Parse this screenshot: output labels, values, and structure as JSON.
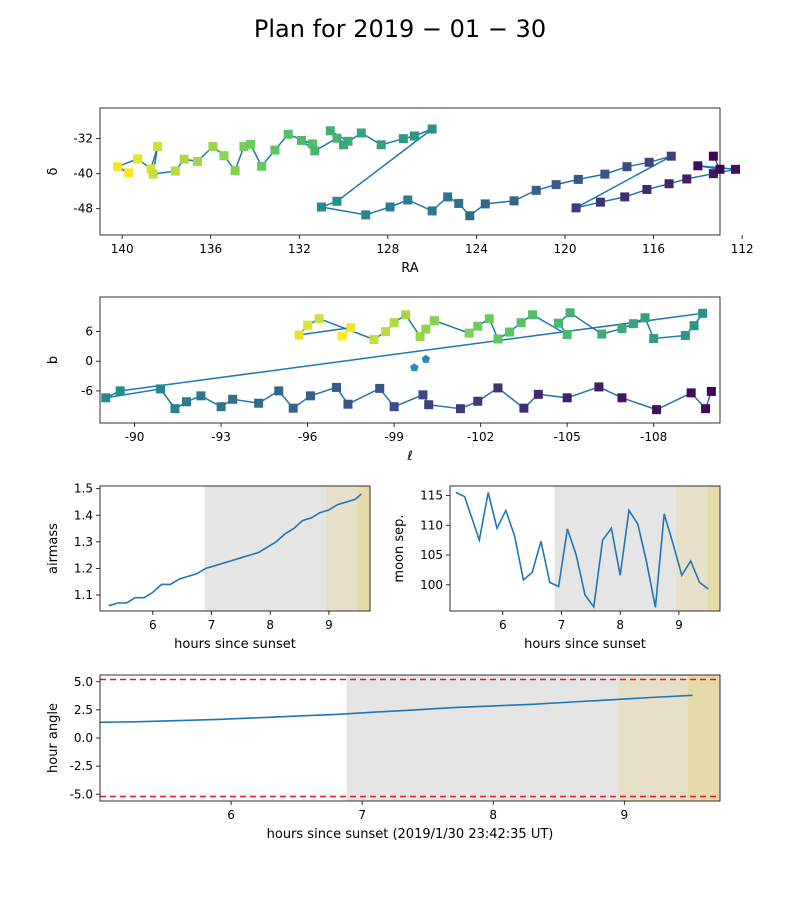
{
  "figure": {
    "title": "Plan for 2019 − 01 − 30",
    "colors": {
      "path": "#1f77b4",
      "moon_shade": "#e5e5e5",
      "twilight_shade": "#e6e0cb",
      "dawn_shade": "#e6dba8",
      "limit_line": "#e31a1c",
      "axes": "#000000"
    }
  },
  "chart_data": [
    {
      "id": "ra-dec",
      "type": "scatter",
      "xlabel": "RA",
      "ylabel": "δ",
      "xlim": [
        141,
        113
      ],
      "ylim": [
        -54,
        -25
      ],
      "xticks": [
        "140",
        "136",
        "132",
        "128",
        "124",
        "120",
        "116",
        "112"
      ],
      "yticks": [
        "-32",
        "-40",
        "-48"
      ],
      "marker": "square",
      "colormap": "viridis (reversed along the plan)",
      "points": [
        {
          "x": 139.7,
          "y": -39.8
        },
        {
          "x": 140.2,
          "y": -38.4
        },
        {
          "x": 139.3,
          "y": -36.6
        },
        {
          "x": 138.7,
          "y": -38.9
        },
        {
          "x": 138.4,
          "y": -33.8
        },
        {
          "x": 138.6,
          "y": -40.1
        },
        {
          "x": 137.6,
          "y": -39.4
        },
        {
          "x": 137.2,
          "y": -36.7
        },
        {
          "x": 136.6,
          "y": -37.2
        },
        {
          "x": 135.9,
          "y": -33.8
        },
        {
          "x": 135.4,
          "y": -35.9
        },
        {
          "x": 134.9,
          "y": -39.3
        },
        {
          "x": 134.5,
          "y": -33.8
        },
        {
          "x": 134.2,
          "y": -33.3
        },
        {
          "x": 133.7,
          "y": -38.3
        },
        {
          "x": 133.1,
          "y": -34.6
        },
        {
          "x": 132.5,
          "y": -31.0
        },
        {
          "x": 131.4,
          "y": -33.2
        },
        {
          "x": 131.9,
          "y": -32.4
        },
        {
          "x": 131.3,
          "y": -34.8
        },
        {
          "x": 130.3,
          "y": -31.9
        },
        {
          "x": 130.6,
          "y": -30.2
        },
        {
          "x": 129.8,
          "y": -32.6
        },
        {
          "x": 130.0,
          "y": -33.4
        },
        {
          "x": 129.2,
          "y": -30.7
        },
        {
          "x": 128.3,
          "y": -33.4
        },
        {
          "x": 127.3,
          "y": -32.0
        },
        {
          "x": 126.8,
          "y": -31.4
        },
        {
          "x": 126.0,
          "y": -29.8
        },
        {
          "x": 130.3,
          "y": -46.3
        },
        {
          "x": 131.0,
          "y": -47.6
        },
        {
          "x": 129.0,
          "y": -49.4
        },
        {
          "x": 127.9,
          "y": -47.6
        },
        {
          "x": 127.1,
          "y": -46.0
        },
        {
          "x": 126.0,
          "y": -48.5
        },
        {
          "x": 125.3,
          "y": -45.3
        },
        {
          "x": 124.8,
          "y": -46.8
        },
        {
          "x": 124.3,
          "y": -49.6
        },
        {
          "x": 123.6,
          "y": -46.9
        },
        {
          "x": 122.3,
          "y": -46.2
        },
        {
          "x": 121.3,
          "y": -43.8
        },
        {
          "x": 120.4,
          "y": -42.5
        },
        {
          "x": 119.4,
          "y": -41.3
        },
        {
          "x": 118.2,
          "y": -40.1
        },
        {
          "x": 117.2,
          "y": -38.4
        },
        {
          "x": 116.2,
          "y": -37.4
        },
        {
          "x": 115.2,
          "y": -36.0
        },
        {
          "x": 119.5,
          "y": -47.8
        },
        {
          "x": 118.4,
          "y": -46.5
        },
        {
          "x": 117.3,
          "y": -45.3
        },
        {
          "x": 116.3,
          "y": -43.6
        },
        {
          "x": 115.3,
          "y": -42.3
        },
        {
          "x": 114.5,
          "y": -41.2
        },
        {
          "x": 113.3,
          "y": -40.0
        },
        {
          "x": 112.3,
          "y": -39.0
        },
        {
          "x": 114.0,
          "y": -38.2
        },
        {
          "x": 113.0,
          "y": -39.0
        },
        {
          "x": 113.3,
          "y": -36.0
        }
      ]
    },
    {
      "id": "galactic",
      "type": "scatter",
      "xlabel": "ℓ",
      "ylabel": "b",
      "xlim": [
        -88.8,
        -110.3
      ],
      "ylim": [
        -12.5,
        13
      ],
      "xticks": [
        "-90",
        "-93",
        "-96",
        "-99",
        "-102",
        "-105",
        "-108"
      ],
      "yticks": [
        "6",
        "0",
        "-6"
      ],
      "marker": "square",
      "points": [
        {
          "x": -97.2,
          "y": 5.1
        },
        {
          "x": -97.5,
          "y": 6.8
        },
        {
          "x": -95.7,
          "y": 5.3
        },
        {
          "x": -96.0,
          "y": 7.3
        },
        {
          "x": -96.4,
          "y": 8.6
        },
        {
          "x": -98.3,
          "y": 4.4
        },
        {
          "x": -98.7,
          "y": 6.0
        },
        {
          "x": -99.0,
          "y": 7.8
        },
        {
          "x": -99.4,
          "y": 9.4
        },
        {
          "x": -99.9,
          "y": 5.0
        },
        {
          "x": -100.1,
          "y": 6.5
        },
        {
          "x": -100.4,
          "y": 8.2
        },
        {
          "x": -101.6,
          "y": 5.7
        },
        {
          "x": -101.9,
          "y": 7.1
        },
        {
          "x": -102.3,
          "y": 8.6
        },
        {
          "x": -102.6,
          "y": 4.5
        },
        {
          "x": -103.0,
          "y": 5.9
        },
        {
          "x": -103.4,
          "y": 7.8
        },
        {
          "x": -103.8,
          "y": 9.4
        },
        {
          "x": -105.0,
          "y": 5.4
        },
        {
          "x": -104.7,
          "y": 7.7
        },
        {
          "x": -105.1,
          "y": 9.8
        },
        {
          "x": -106.2,
          "y": 5.5
        },
        {
          "x": -106.9,
          "y": 6.6
        },
        {
          "x": -107.3,
          "y": 7.6
        },
        {
          "x": -107.7,
          "y": 8.8
        },
        {
          "x": -108.0,
          "y": 4.6
        },
        {
          "x": -109.1,
          "y": 5.2
        },
        {
          "x": -109.4,
          "y": 7.2
        },
        {
          "x": -109.7,
          "y": 9.7
        },
        {
          "x": -89.5,
          "y": -6.0
        },
        {
          "x": -89.0,
          "y": -7.4
        },
        {
          "x": -90.9,
          "y": -5.6
        },
        {
          "x": -91.4,
          "y": -9.6
        },
        {
          "x": -91.8,
          "y": -8.2
        },
        {
          "x": -92.3,
          "y": -7.0
        },
        {
          "x": -93.0,
          "y": -9.2
        },
        {
          "x": -93.4,
          "y": -7.7
        },
        {
          "x": -94.3,
          "y": -8.5
        },
        {
          "x": -95.0,
          "y": -6.0
        },
        {
          "x": -95.5,
          "y": -9.5
        },
        {
          "x": -96.1,
          "y": -7.0
        },
        {
          "x": -97.0,
          "y": -5.3
        },
        {
          "x": -97.4,
          "y": -8.7
        },
        {
          "x": -98.5,
          "y": -5.5
        },
        {
          "x": -99.0,
          "y": -9.2
        },
        {
          "x": -100.0,
          "y": -6.8
        },
        {
          "x": -100.2,
          "y": -8.8
        },
        {
          "x": -101.3,
          "y": -9.6
        },
        {
          "x": -101.9,
          "y": -8.1
        },
        {
          "x": -102.6,
          "y": -5.4
        },
        {
          "x": -103.5,
          "y": -9.5
        },
        {
          "x": -104.0,
          "y": -6.7
        },
        {
          "x": -105.0,
          "y": -7.4
        },
        {
          "x": -106.1,
          "y": -5.2
        },
        {
          "x": -106.9,
          "y": -7.4
        },
        {
          "x": -108.1,
          "y": -9.8
        },
        {
          "x": -109.3,
          "y": -6.4
        },
        {
          "x": -109.8,
          "y": -9.6
        },
        {
          "x": -110.0,
          "y": -6.1
        }
      ],
      "pentagons": [
        {
          "x": -100.1,
          "y": 0.4
        },
        {
          "x": -99.7,
          "y": -1.3
        }
      ]
    },
    {
      "id": "airmass",
      "type": "line",
      "xlabel": "hours since sunset",
      "ylabel": "airmass",
      "xlim": [
        5.1,
        9.7
      ],
      "ylim": [
        1.04,
        1.51
      ],
      "xticks": [
        "6",
        "7",
        "8",
        "9"
      ],
      "yticks": [
        "1.1",
        "1.2",
        "1.3",
        "1.4",
        "1.5"
      ],
      "x": [
        5.25,
        5.4,
        5.55,
        5.7,
        5.85,
        6.0,
        6.15,
        6.3,
        6.45,
        6.6,
        6.75,
        6.9,
        7.05,
        7.2,
        7.35,
        7.5,
        7.65,
        7.8,
        7.95,
        8.1,
        8.25,
        8.4,
        8.55,
        8.7,
        8.85,
        9.0,
        9.15,
        9.3,
        9.45,
        9.55
      ],
      "y": [
        1.06,
        1.07,
        1.07,
        1.09,
        1.09,
        1.11,
        1.14,
        1.14,
        1.16,
        1.17,
        1.18,
        1.2,
        1.21,
        1.22,
        1.23,
        1.24,
        1.25,
        1.26,
        1.28,
        1.3,
        1.33,
        1.35,
        1.38,
        1.39,
        1.41,
        1.42,
        1.44,
        1.45,
        1.46,
        1.48
      ]
    },
    {
      "id": "moon",
      "type": "line",
      "xlabel": "hours since sunset",
      "ylabel": "moon sep.",
      "xlim": [
        5.1,
        9.7
      ],
      "ylim": [
        95.6,
        116.6
      ],
      "xticks": [
        "6",
        "7",
        "8",
        "9"
      ],
      "yticks": [
        "100",
        "105",
        "110",
        "115"
      ],
      "x": [
        5.2,
        5.35,
        5.5,
        5.6,
        5.75,
        5.9,
        6.05,
        6.2,
        6.35,
        6.5,
        6.65,
        6.8,
        6.95,
        7.1,
        7.25,
        7.4,
        7.55,
        7.7,
        7.85,
        8.0,
        8.15,
        8.3,
        8.45,
        8.6,
        8.75,
        8.9,
        9.05,
        9.2,
        9.35,
        9.5
      ],
      "y": [
        115.5,
        114.8,
        110.4,
        107.5,
        115.5,
        109.5,
        112.5,
        108.2,
        100.8,
        102.1,
        107.3,
        100.4,
        99.7,
        109.4,
        105.0,
        98.3,
        96.3,
        107.5,
        109.5,
        101.6,
        112.5,
        110.2,
        103.8,
        96.2,
        111.9,
        106.9,
        101.6,
        104.0,
        100.4,
        99.3
      ]
    },
    {
      "id": "hour-angle",
      "type": "line",
      "xlabel": "hours since sunset (2019/1/30 23:42:35 UT)",
      "ylabel": "hour angle",
      "xlim": [
        5.0,
        9.73
      ],
      "ylim": [
        -5.6,
        5.6
      ],
      "xticks": [
        "6",
        "7",
        "8",
        "9"
      ],
      "yticks": [
        "5.0",
        "2.5",
        "0.0",
        "-2.5",
        "-5.0"
      ],
      "limits": [
        5.2,
        -5.2
      ],
      "x": [
        5.0,
        5.3,
        5.6,
        5.9,
        6.1,
        6.5,
        6.8,
        7.1,
        7.4,
        7.7,
        8.0,
        8.3,
        8.6,
        8.9,
        9.2,
        9.52
      ],
      "y": [
        1.4,
        1.45,
        1.55,
        1.65,
        1.75,
        1.95,
        2.1,
        2.3,
        2.5,
        2.7,
        2.85,
        3.0,
        3.2,
        3.4,
        3.6,
        3.8
      ]
    }
  ],
  "shading": {
    "moon_start": 6.88,
    "twilight_start": 8.95,
    "dawn_start": 9.48
  }
}
